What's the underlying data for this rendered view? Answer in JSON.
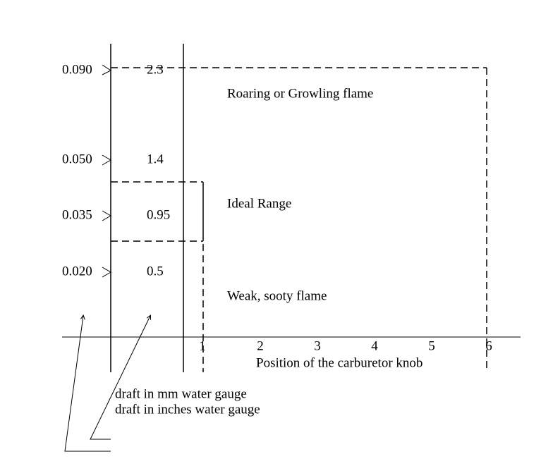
{
  "inches_labels": [
    "0.090",
    "0.050",
    "0.035",
    "0.020"
  ],
  "mm_labels": [
    "2.3",
    "1.4",
    "0.95",
    "0.5"
  ],
  "knob_positions": [
    "1",
    "2",
    "3",
    "4",
    "5",
    "6"
  ],
  "x_axis_label": "Position of the carburetor knob",
  "regions": [
    "Roaring or Growling flame",
    "Ideal Range",
    "Weak, sooty flame"
  ],
  "legend": [
    "draft in mm water gauge",
    "draft in inches water gauge"
  ]
}
